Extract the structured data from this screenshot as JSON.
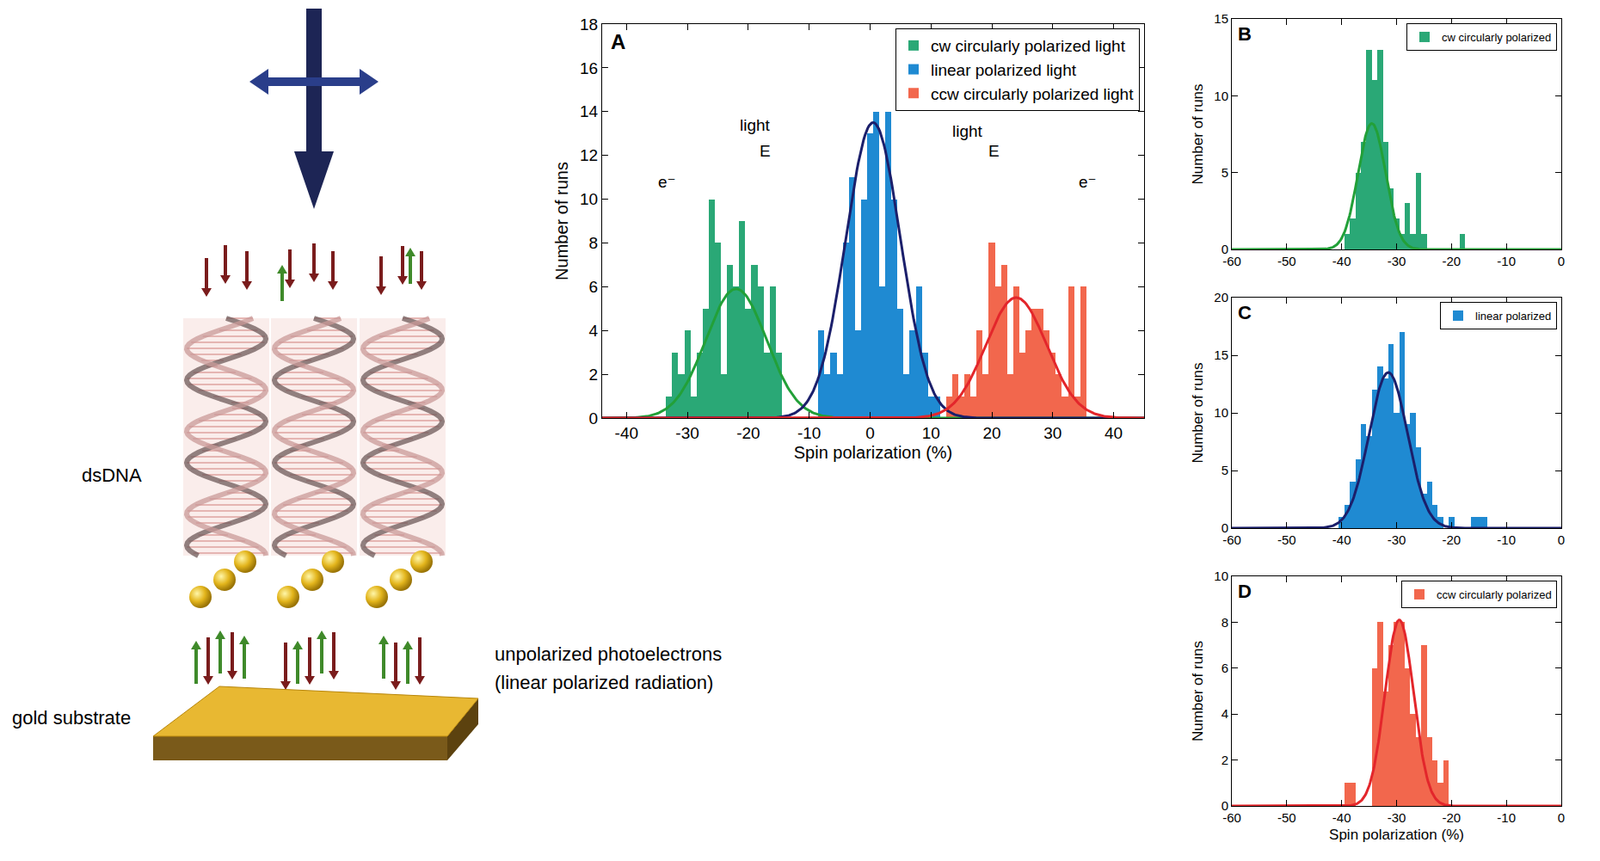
{
  "chart_data": [
    {
      "type": "histogram",
      "title": "A",
      "xlabel": "Spin polarization (%)",
      "ylabel": "Number of runs",
      "xlim": [
        -44,
        45
      ],
      "xticks": [
        -40,
        -30,
        -20,
        -10,
        0,
        10,
        20,
        30,
        40
      ],
      "ylim": [
        0,
        18
      ],
      "yticks": [
        0,
        2,
        4,
        6,
        8,
        10,
        12,
        14,
        16,
        18
      ],
      "grid": false,
      "legend": "upper right",
      "series": [
        {
          "name": "cw circularly polarized light",
          "color": "#2aa876",
          "bins": [
            -33.5,
            -32.5,
            -31.5,
            -30.5,
            -29.5,
            -28.5,
            -27.5,
            -26.5,
            -25.5,
            -24.5,
            -23.5,
            -22.5,
            -21.5,
            -20.5,
            -19.5,
            -18.5,
            -17.5,
            -16.5,
            -15.5,
            -14.5
          ],
          "counts": [
            1,
            3,
            2,
            4,
            1,
            3,
            5,
            10,
            8,
            2,
            7,
            6,
            9,
            5,
            7,
            6,
            3,
            6,
            3
          ],
          "fit": {
            "mean": -22,
            "sigma": 5,
            "peak": 5.9,
            "color": "#22a038"
          }
        },
        {
          "name": "linear polarized light",
          "color": "#1f8ad2",
          "bins": [
            -8.5,
            -7.5,
            -6.5,
            -5.5,
            -4.5,
            -3.5,
            -2.5,
            -1.5,
            -0.5,
            0.5,
            1.5,
            2.5,
            3.5,
            4.5,
            5.5,
            6.5,
            7.5,
            8.5,
            9.5,
            10.5,
            11.5
          ],
          "counts": [
            4,
            2,
            3,
            2,
            8,
            11,
            4,
            10,
            13,
            14,
            6,
            14,
            10,
            5,
            2,
            4,
            6,
            3,
            1,
            1
          ],
          "fit": {
            "mean": 0.5,
            "sigma": 4.5,
            "peak": 13.5,
            "color": "#1b1f6b"
          }
        },
        {
          "name": "ccw circularly polarized light",
          "color": "#f2674d",
          "bins": [
            12.5,
            13.5,
            14.5,
            15.5,
            16.5,
            17.5,
            18.5,
            19.5,
            20.5,
            21.5,
            22.5,
            23.5,
            24.5,
            25.5,
            26.5,
            27.5,
            28.5,
            29.5,
            30.5,
            31.5,
            32.5,
            33.5,
            34.5,
            35.5
          ],
          "counts": [
            1,
            2,
            1,
            2,
            1,
            4,
            2,
            8,
            6,
            7,
            2,
            6,
            3,
            4,
            5,
            5,
            4,
            3,
            2,
            1,
            6,
            1,
            6
          ],
          "fit": {
            "mean": 24,
            "sigma": 5,
            "peak": 5.5,
            "color": "#e3262b"
          }
        }
      ],
      "annotations": [
        {
          "text": "light",
          "x": -18.9,
          "y": 13.4
        },
        {
          "text": "E",
          "x": -17.2,
          "y": 12.2
        },
        {
          "text": "e⁻",
          "x": -33.3,
          "y": 10.8
        },
        {
          "text": "light",
          "x": 16,
          "y": 13.1
        },
        {
          "text": "E",
          "x": 20.3,
          "y": 12.2
        },
        {
          "text": "e⁻",
          "x": 35.8,
          "y": 10.8
        }
      ]
    },
    {
      "type": "histogram",
      "title": "B",
      "ylabel": "Number of runs",
      "xlim": [
        -60,
        0
      ],
      "xticks": [
        -60,
        -50,
        -40,
        -30,
        -20,
        -10,
        0
      ],
      "ylim": [
        0,
        15
      ],
      "yticks": [
        0,
        5,
        10,
        15
      ],
      "grid": false,
      "legend": "upper right",
      "series": [
        {
          "name": "cw circularly polarized",
          "color": "#2aa876",
          "bins": [
            -39.5,
            -38.5,
            -37.5,
            -36.5,
            -35.5,
            -34.5,
            -33.5,
            -32.5,
            -31.5,
            -30.5,
            -29.5,
            -28.5,
            -27.5,
            -26.5,
            -25.5,
            -24.5,
            -23.5,
            -22.5,
            -21.5,
            -20.5,
            -19.5,
            -18.5,
            -17.5
          ],
          "counts": [
            1,
            2,
            5,
            7,
            13,
            11,
            13,
            7,
            4,
            2,
            1,
            3,
            1,
            5,
            1,
            0,
            0,
            0,
            0,
            0,
            0,
            1
          ],
          "fit": {
            "mean": -34.5,
            "sigma": 2.5,
            "peak": 8.2,
            "color": "#22a038"
          }
        }
      ]
    },
    {
      "type": "histogram",
      "title": "C",
      "ylabel": "Number of runs",
      "xlim": [
        -60,
        0
      ],
      "xticks": [
        -60,
        -50,
        -40,
        -30,
        -20,
        -10,
        0
      ],
      "ylim": [
        0,
        20
      ],
      "yticks": [
        0,
        5,
        10,
        15,
        20
      ],
      "grid": false,
      "legend": "upper right",
      "series": [
        {
          "name": "linear polarized",
          "color": "#1f8ad2",
          "bins": [
            -40.5,
            -39.5,
            -38.5,
            -37.5,
            -36.5,
            -35.5,
            -34.5,
            -33.5,
            -32.5,
            -31.5,
            -30.5,
            -29.5,
            -28.5,
            -27.5,
            -26.5,
            -25.5,
            -24.5,
            -23.5,
            -22.5,
            -21.5,
            -20.5,
            -19.5,
            -18.5,
            -17.5,
            -16.5,
            -15.5,
            -14.5,
            -13.5
          ],
          "counts": [
            1,
            2,
            4,
            6,
            9,
            8,
            12,
            14,
            13,
            16,
            10,
            17,
            9,
            10,
            7,
            3,
            4,
            2,
            1,
            0,
            1,
            0,
            0,
            0,
            1,
            1,
            1
          ],
          "fit": {
            "mean": -31.5,
            "sigma": 3.5,
            "peak": 13.5,
            "color": "#1b1f6b"
          }
        }
      ]
    },
    {
      "type": "histogram",
      "title": "D",
      "xlabel": "Spin polarization (%)",
      "ylabel": "Number of runs",
      "xlim": [
        -60,
        0
      ],
      "xticks": [
        -60,
        -50,
        -40,
        -30,
        -20,
        -10,
        0
      ],
      "ylim": [
        0,
        10
      ],
      "yticks": [
        0,
        2,
        4,
        6,
        8,
        10
      ],
      "grid": false,
      "legend": "upper right",
      "series": [
        {
          "name": "ccw circularly polarized",
          "color": "#f2674d",
          "bins": [
            -39.5,
            -38.5,
            -37.5,
            -36.5,
            -35.5,
            -34.5,
            -33.5,
            -32.5,
            -31.5,
            -30.5,
            -29.5,
            -28.5,
            -27.5,
            -26.5,
            -25.5,
            -24.5,
            -23.5,
            -22.5,
            -21.5,
            -20.5
          ],
          "counts": [
            1,
            1,
            0,
            0,
            0,
            6,
            8,
            5,
            7,
            8,
            8,
            6,
            4,
            3,
            7,
            3,
            2,
            1,
            2
          ],
          "fit": {
            "mean": -29.5,
            "sigma": 2.6,
            "peak": 8.1,
            "color": "#e3262b"
          }
        }
      ]
    }
  ],
  "diagram": {
    "dna_label": "dsDNA",
    "substrate_label": "gold substrate",
    "photoelectron_label": [
      "unpolarized photoelectrons",
      "(linear polarized radiation)"
    ]
  }
}
